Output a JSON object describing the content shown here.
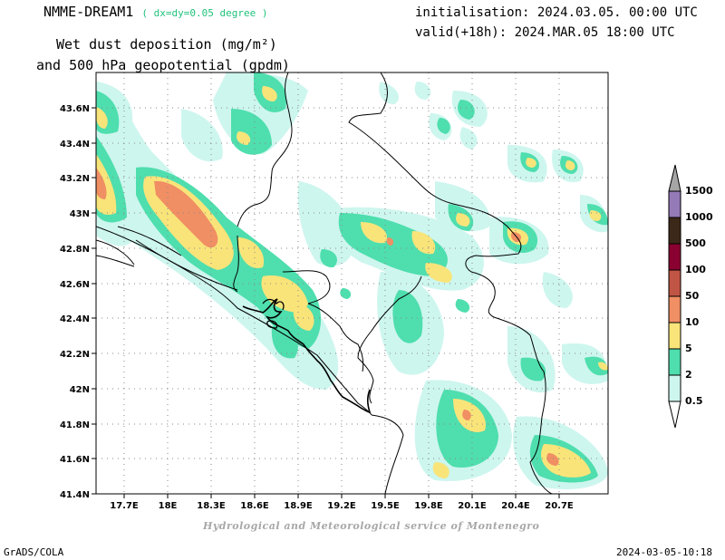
{
  "header": {
    "model": "NMME-DREAM1",
    "resolution": "( dx=dy=0.05 degree )",
    "initialisation": "initialisation: 2024.03.05. 00:00 UTC",
    "valid": "valid(+18h): 2024.MAR.05 18:00 UTC",
    "variable": "Wet dust deposition (mg/m²)",
    "variable_sub": "and 500 hPa geopotential (gpdm)"
  },
  "map": {
    "lon_ticks": [
      "17.7E",
      "18E",
      "18.3E",
      "18.6E",
      "18.9E",
      "19.2E",
      "19.5E",
      "19.8E",
      "20.1E",
      "20.4E",
      "20.7E"
    ],
    "lat_ticks": [
      "43.6N",
      "43.4N",
      "43.2N",
      "43N",
      "42.8N",
      "42.6N",
      "42.4N",
      "42.2N",
      "42N",
      "41.8N",
      "41.6N",
      "41.4N"
    ],
    "lon_range": [
      17.5,
      21.0
    ],
    "lat_range": [
      41.4,
      43.7
    ],
    "grid": "dotted"
  },
  "legend": {
    "levels": [
      "0.5",
      "2",
      "5",
      "10",
      "50",
      "100",
      "500",
      "1000",
      "1500"
    ],
    "colors": [
      "#cdf6ee",
      "#4fdeae",
      "#f9e47a",
      "#f08e64",
      "#c05545",
      "#8a0030",
      "#3c2818",
      "#957ab8",
      "#a6a6a6"
    ]
  },
  "credit": "Hydrological and Meteorological service of Montenegro",
  "footer": {
    "software": "GrADS/COLA",
    "timestamp": "2024-03-05-10:18"
  }
}
